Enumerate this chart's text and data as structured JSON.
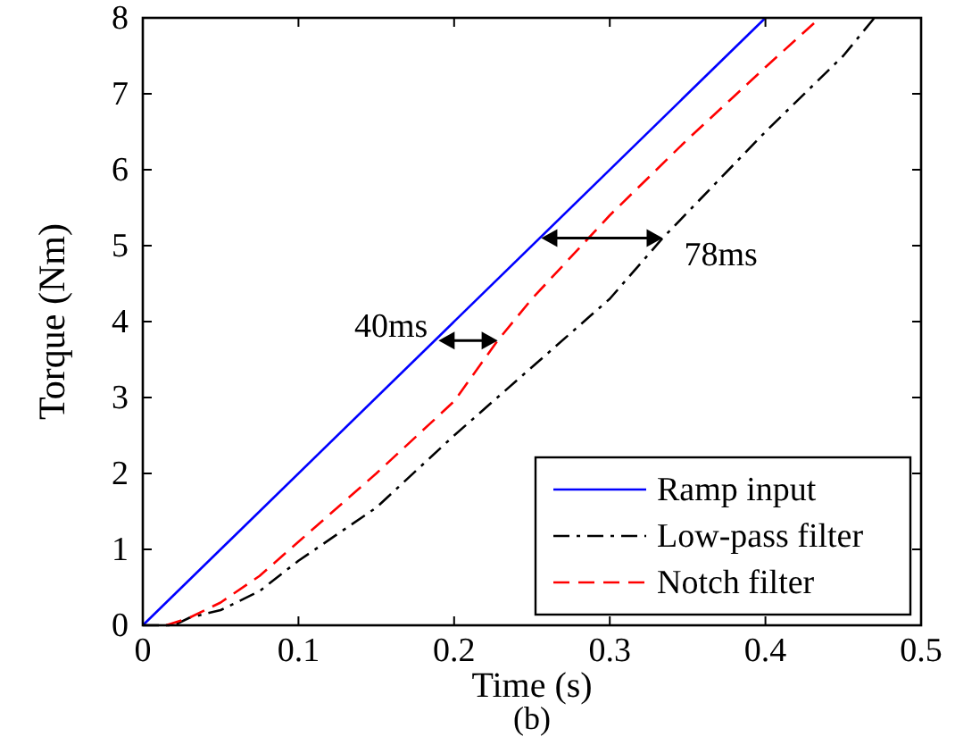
{
  "chart_data": {
    "type": "line",
    "xlabel": "Time (s)",
    "ylabel": "Torque (Nm)",
    "xlim": [
      0,
      0.5
    ],
    "xticks": [
      0,
      0.1,
      0.2,
      0.3,
      0.4,
      0.5
    ],
    "ylim": [
      0,
      8
    ],
    "yticks": [
      0,
      1,
      2,
      3,
      4,
      5,
      6,
      7,
      8
    ],
    "grid": false,
    "legend": "bottom right",
    "series": [
      {
        "name": "Ramp input",
        "color": "#0000ff",
        "line_style": "solid",
        "x": [
          0,
          0.4
        ],
        "values": [
          0,
          8
        ]
      },
      {
        "name": "Low-pass filter",
        "color": "#000000",
        "line_style": "dashdot",
        "x": [
          0,
          0.02,
          0.03,
          0.05,
          0.075,
          0.1,
          0.15,
          0.2,
          0.25,
          0.3,
          0.334,
          0.4,
          0.45,
          0.47
        ],
        "values": [
          0,
          0,
          0.1,
          0.2,
          0.45,
          0.85,
          1.55,
          2.5,
          3.4,
          4.3,
          5.1,
          6.5,
          7.5,
          8
        ]
      },
      {
        "name": "Notch filter",
        "color": "#ff0000",
        "line_style": "dashed",
        "x": [
          0.015,
          0.03,
          0.05,
          0.075,
          0.1,
          0.15,
          0.2,
          0.228,
          0.25,
          0.3,
          0.35,
          0.4,
          0.435
        ],
        "values": [
          0,
          0.1,
          0.3,
          0.65,
          1.1,
          2.0,
          2.95,
          3.75,
          4.3,
          5.4,
          6.4,
          7.35,
          8
        ]
      }
    ],
    "annotations": [
      {
        "text": "40ms",
        "x": 0.19,
        "y": 3.75
      },
      {
        "text": "78ms",
        "x": 0.334,
        "y": 5.1
      },
      "(b)"
    ]
  }
}
